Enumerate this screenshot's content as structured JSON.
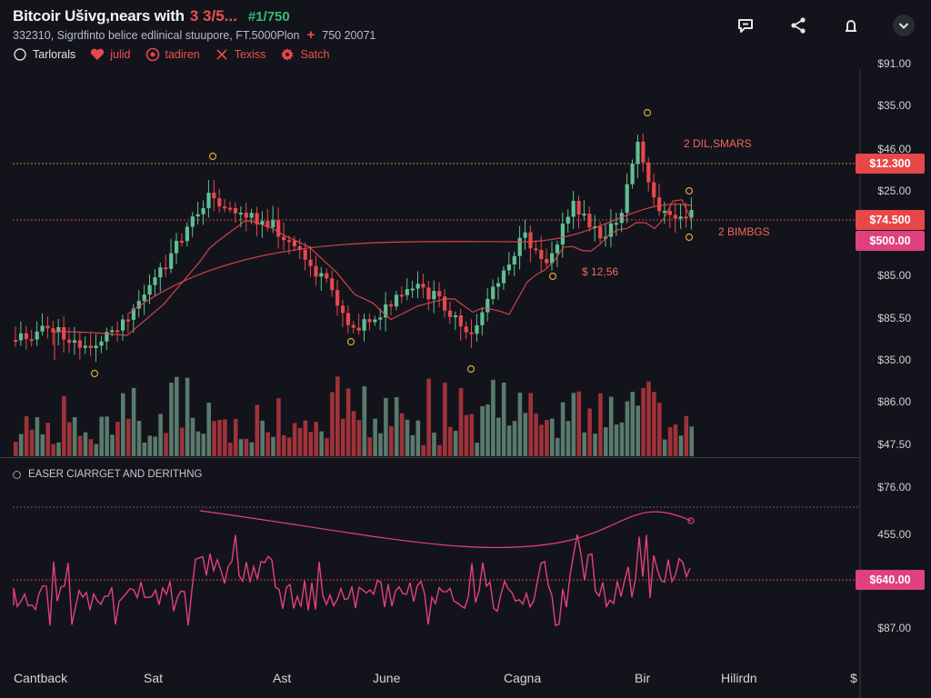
{
  "header": {
    "title": "Bitcoir Ušivg,nears with",
    "change": "3 3/5...",
    "pct": "#1/750",
    "subtitle": "332310, Sigrdfinto belice edlinical stuupore, FT.5000Plon",
    "subtitle_plus": "+",
    "subtitle_tail": "750 20071"
  },
  "toolbar": [
    {
      "label": "Tarlorals",
      "icon": "circle-icon"
    },
    {
      "label": "julid",
      "icon": "heart-icon"
    },
    {
      "label": "tadiren",
      "icon": "target-icon"
    },
    {
      "label": "Texiss",
      "icon": "cross-icon"
    },
    {
      "label": "Satch",
      "icon": "gear-icon"
    }
  ],
  "top_icons": [
    "chat-icon",
    "share-icon",
    "bell-icon",
    "chevron-down-icon"
  ],
  "price_axis": [
    "$91.00",
    "$35.00",
    "$46.00",
    "$25.00",
    "$85.00",
    "$85.50",
    "$35.00",
    "$86.00",
    "$47.50"
  ],
  "price_tags": [
    {
      "label": "$12.300",
      "color": "#e8474a"
    },
    {
      "label": "$74.500",
      "color": "#e8474a"
    },
    {
      "label": "$500.00",
      "color": "#e0407f"
    }
  ],
  "annotations": {
    "upper": "2 DIL,SMARS",
    "right": "2 BIMBGS",
    "mid": "$ 12,56"
  },
  "indicator": {
    "legend": "EASER CIARRGET AND DERITHNG",
    "axis": [
      "$76.00",
      "455.00",
      "$87.00"
    ],
    "tag": {
      "label": "$640.00",
      "color": "#e0407f"
    }
  },
  "x_axis": [
    "Cantback",
    "Sat",
    "Ast",
    "June",
    "Cagna",
    "Bir",
    "Hilirdn",
    "$"
  ],
  "colors": {
    "background": "#13141b",
    "up": "#5fbf93",
    "down": "#e5484d",
    "indicator": "#e4407f",
    "ma": "#e5484d"
  }
}
